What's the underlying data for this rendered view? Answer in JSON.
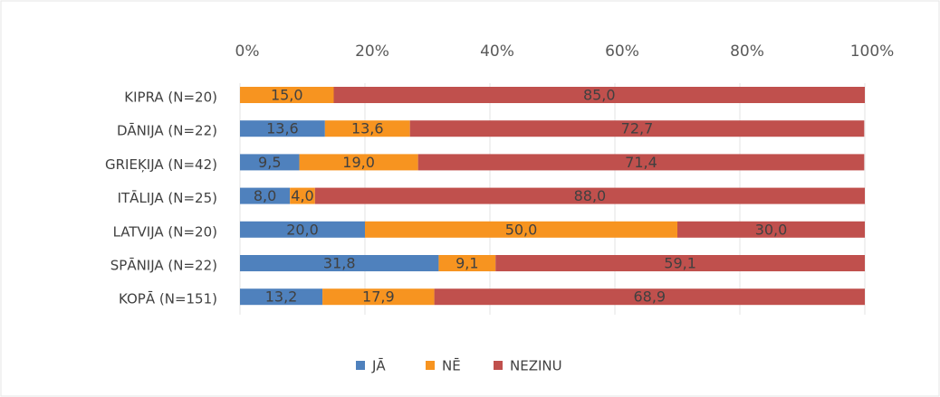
{
  "chart_data": {
    "type": "stacked-bar-horizontal",
    "categories": [
      "KIPRA (N=20)",
      "DĀNIJA (N=22)",
      "GRIEĶIJA (N=42)",
      "ITĀLIJA (N=25)",
      "LATVIJA (N=20)",
      "SPĀNIJA (N=22)",
      "KOPĀ (N=151)"
    ],
    "series": [
      {
        "name": "JĀ",
        "color": "#4f81bd",
        "values": [
          0,
          13.6,
          9.5,
          8.0,
          20.0,
          31.8,
          13.2
        ],
        "value_labels": [
          null,
          "13,6",
          "9,5",
          "8,0",
          "20,0",
          "31,8",
          "13,2"
        ]
      },
      {
        "name": "NĒ",
        "color": "#f79420",
        "values": [
          15.0,
          13.6,
          19.0,
          4.0,
          50.0,
          9.1,
          17.9
        ],
        "value_labels": [
          "15,0",
          "13,6",
          "19,0",
          "4,0",
          "50,0",
          "9,1",
          "17,9"
        ]
      },
      {
        "name": "NEZINU",
        "color": "#c0504d",
        "values": [
          85.0,
          72.7,
          71.4,
          88.0,
          30.0,
          59.1,
          68.9
        ],
        "value_labels": [
          "85,0",
          "72,7",
          "71,4",
          "88,0",
          "30,0",
          "59,1",
          "68,9"
        ]
      }
    ],
    "xlim": [
      0,
      100
    ],
    "xticks": [
      {
        "value": 0,
        "label": "0%"
      },
      {
        "value": 20,
        "label": "20%"
      },
      {
        "value": 40,
        "label": "40%"
      },
      {
        "value": 60,
        "label": "60%"
      },
      {
        "value": 80,
        "label": "80%"
      },
      {
        "value": 100,
        "label": "100%"
      }
    ],
    "grid": true,
    "legend": "bottom"
  }
}
